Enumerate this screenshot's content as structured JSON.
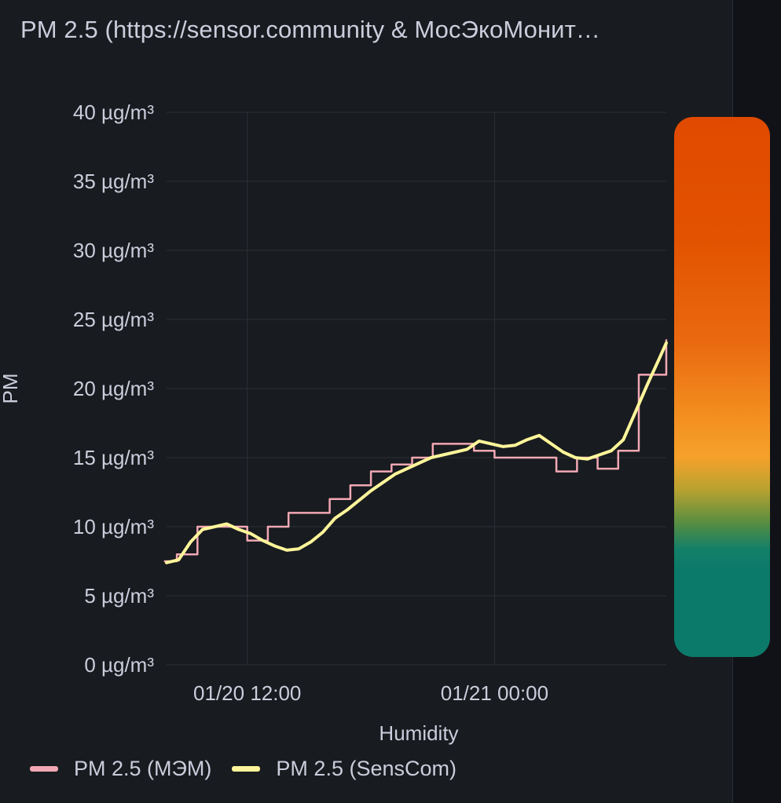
{
  "panel": {
    "title": "PM 2.5 (https://sensor.community & МосЭкоМонит…"
  },
  "legend": {
    "items": [
      {
        "label": "PM 2.5 (МЭМ)",
        "color": "#f2a8b4"
      },
      {
        "label": "PM 2.5 (SensCom)",
        "color": "#fff59a"
      }
    ]
  },
  "colors": {
    "background": "#181b1f",
    "grid": "#2c2f36",
    "mem_series": "#f2a8b4",
    "senscom_series": "#fff59a",
    "gauge_top": "#e04a00",
    "gauge_mid": "#f6a12a",
    "gauge_bottom": "#0b7a6a"
  },
  "chart_data": {
    "type": "line",
    "ylabel": "PM",
    "xlabel": "Humidity",
    "y_unit": "µg/m³",
    "ylim": [
      0,
      40
    ],
    "y_ticks": [
      "0 µg/m³",
      "5 µg/m³",
      "10 µg/m³",
      "15 µg/m³",
      "20 µg/m³",
      "25 µg/m³",
      "30 µg/m³",
      "35 µg/m³",
      "40 µg/m³"
    ],
    "x_ticks": [
      "01/20 12:00",
      "01/21 00:00"
    ],
    "x_range": [
      "01/20 08:05",
      "01/21 08:20"
    ],
    "grid": true,
    "legend_position": "bottom-left",
    "series": [
      {
        "name": "PM 2.5 (МЭМ)",
        "step": true,
        "x": [
          "01/20 08:00",
          "01/20 08:35",
          "01/20 09:35",
          "01/20 12:00",
          "01/20 13:00",
          "01/20 14:00",
          "01/20 15:00",
          "01/20 16:00",
          "01/20 17:00",
          "01/20 18:00",
          "01/20 19:00",
          "01/20 20:00",
          "01/20 21:00",
          "01/20 22:00",
          "01/20 23:00",
          "01/21 00:00",
          "01/21 01:00",
          "01/21 02:00",
          "01/21 03:00",
          "01/21 04:00",
          "01/21 05:00",
          "01/21 06:00",
          "01/21 07:00",
          "01/21 07:40",
          "01/21 08:20"
        ],
        "values": [
          7.5,
          8.0,
          10.0,
          9.0,
          10.0,
          11.0,
          11.0,
          12.0,
          13.0,
          14.0,
          14.5,
          15.0,
          16.0,
          16.0,
          15.5,
          15.0,
          15.0,
          15.0,
          14.0,
          15.0,
          14.2,
          15.5,
          21.0,
          21.0,
          23.5
        ]
      },
      {
        "name": "PM 2.5 (SensCom)",
        "step": false,
        "x": [
          "01/20 08:05",
          "01/20 08:40",
          "01/20 09:15",
          "01/20 09:50",
          "01/20 10:25",
          "01/20 11:00",
          "01/20 11:35",
          "01/20 12:10",
          "01/20 12:45",
          "01/20 13:20",
          "01/20 13:55",
          "01/20 14:30",
          "01/20 15:05",
          "01/20 15:40",
          "01/20 16:15",
          "01/20 16:50",
          "01/20 17:25",
          "01/20 18:00",
          "01/20 18:35",
          "01/20 19:10",
          "01/20 19:45",
          "01/20 20:20",
          "01/20 20:55",
          "01/20 21:30",
          "01/20 22:05",
          "01/20 22:40",
          "01/20 23:15",
          "01/20 23:50",
          "01/21 00:25",
          "01/21 01:00",
          "01/21 01:35",
          "01/21 02:10",
          "01/21 02:45",
          "01/21 03:20",
          "01/21 03:55",
          "01/21 04:30",
          "01/21 05:05",
          "01/21 05:40",
          "01/21 06:15",
          "01/21 06:50",
          "01/21 07:25",
          "01/21 08:00",
          "01/21 08:20"
        ],
        "values": [
          7.4,
          7.6,
          8.9,
          9.8,
          10.0,
          10.2,
          9.8,
          9.5,
          9.0,
          8.6,
          8.3,
          8.4,
          8.9,
          9.6,
          10.6,
          11.2,
          11.9,
          12.6,
          13.2,
          13.8,
          14.2,
          14.6,
          15.0,
          15.2,
          15.4,
          15.6,
          16.2,
          16.0,
          15.8,
          15.9,
          16.3,
          16.6,
          16.0,
          15.4,
          15.0,
          14.9,
          15.2,
          15.5,
          16.3,
          18.3,
          20.3,
          22.2,
          23.3
        ]
      }
    ]
  }
}
